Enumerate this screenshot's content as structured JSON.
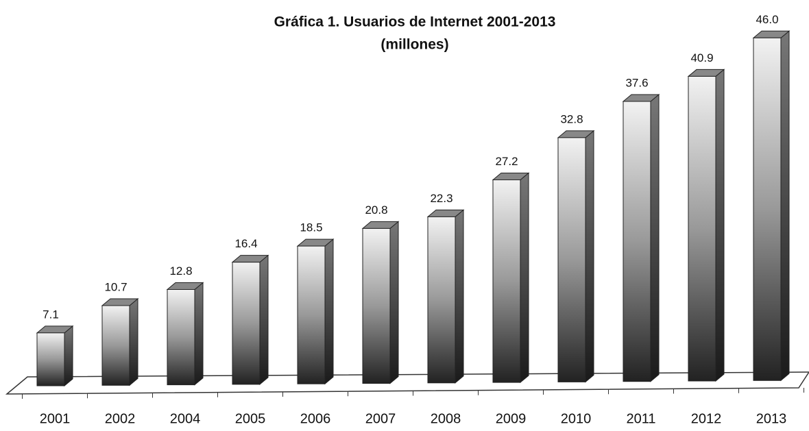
{
  "chart_data": {
    "type": "bar3d",
    "title": "Gráfica 1. Usuarios de Internet 2001-2013",
    "subtitle": "(millones)",
    "categories": [
      "2001",
      "2002",
      "2004",
      "2005",
      "2006",
      "2007",
      "2008",
      "2009",
      "2010",
      "2011",
      "2012",
      "2013"
    ],
    "values": [
      7.1,
      10.7,
      12.8,
      16.4,
      18.5,
      20.8,
      22.3,
      27.2,
      32.8,
      37.6,
      40.9,
      46
    ],
    "value_labels": [
      "7.1",
      "10.7",
      "12.8",
      "16.4",
      "18.5",
      "20.8",
      "22.3",
      "27.2",
      "32.8",
      "37.6",
      "40.9",
      "46.0"
    ]
  }
}
